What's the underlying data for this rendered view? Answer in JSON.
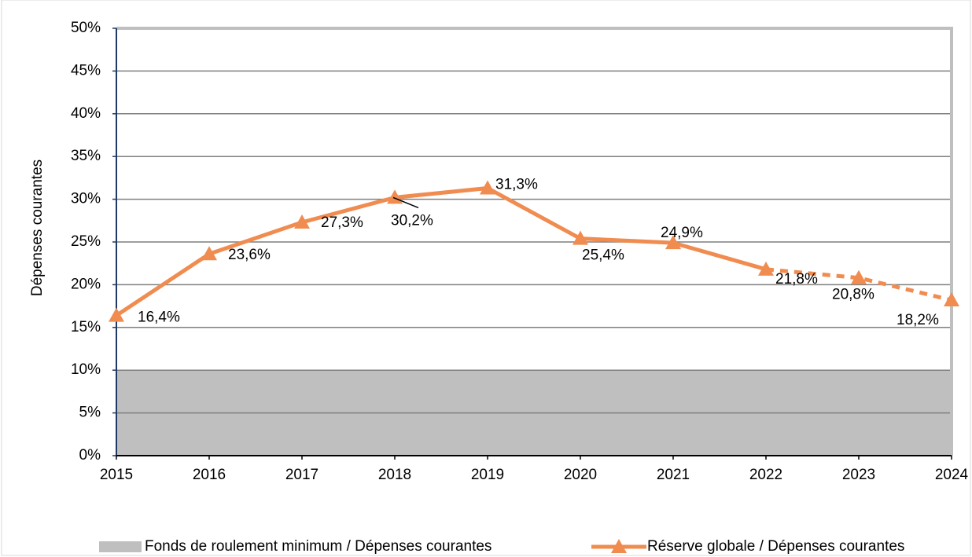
{
  "chart_data": {
    "type": "line",
    "y_label": "Dépenses courantes",
    "categories": [
      "2015",
      "2016",
      "2017",
      "2018",
      "2019",
      "2020",
      "2021",
      "2022",
      "2023",
      "2024"
    ],
    "series": [
      {
        "name": "Fonds de roulement minimum / Dépenses courantes",
        "type": "area",
        "color": "#bfbfbf",
        "values": [
          10,
          10,
          10,
          10,
          10,
          10,
          10,
          10,
          10,
          10
        ]
      },
      {
        "name": "Réserve globale / Dépenses courantes",
        "type": "line",
        "color": "#f08c50",
        "marker": "triangle",
        "dash_from_index": 7,
        "values": [
          16.4,
          23.6,
          27.3,
          30.2,
          31.3,
          25.4,
          24.9,
          21.8,
          20.8,
          18.2
        ],
        "value_labels": [
          "16,4%",
          "23,6%",
          "27,3%",
          "30,2%",
          "31,3%",
          "25,4%",
          "24,9%",
          "21,8%",
          "20,8%",
          "18,2%"
        ]
      }
    ],
    "ylim": [
      0,
      50
    ],
    "yticks": [
      {
        "value": 0,
        "label": "0%"
      },
      {
        "value": 5,
        "label": "5%"
      },
      {
        "value": 10,
        "label": "10%"
      },
      {
        "value": 15,
        "label": "15%"
      },
      {
        "value": 20,
        "label": "20%"
      },
      {
        "value": 25,
        "label": "25%"
      },
      {
        "value": 30,
        "label": "30%"
      },
      {
        "value": 35,
        "label": "35%"
      },
      {
        "value": 40,
        "label": "40%"
      },
      {
        "value": 45,
        "label": "45%"
      },
      {
        "value": 50,
        "label": "50%"
      }
    ],
    "grid": true,
    "legend": "bottom"
  }
}
